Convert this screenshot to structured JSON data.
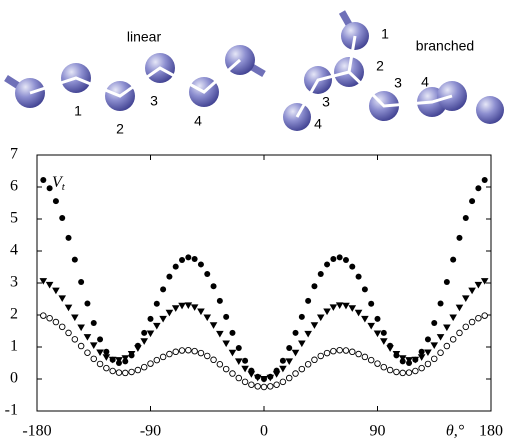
{
  "diagrams": [
    {
      "title": "linear",
      "labels": [
        "1",
        "2",
        "3",
        "4"
      ]
    },
    {
      "title": "branched",
      "labels": [
        "1",
        "2",
        "3",
        "4",
        "3",
        "4"
      ]
    }
  ],
  "chart_data": {
    "type": "scatter",
    "ylabel": {
      "main": "V",
      "sub": "t"
    },
    "xlabel": "θ,°",
    "xlim": [
      -180,
      180
    ],
    "ylim": [
      -1,
      7
    ],
    "xticks": [
      -180,
      -90,
      0,
      90,
      180
    ],
    "yticks": [
      -1,
      0,
      1,
      2,
      3,
      4,
      5,
      6,
      7
    ],
    "x": [
      -175,
      -170,
      -165,
      -160,
      -155,
      -150,
      -145,
      -140,
      -135,
      -130,
      -125,
      -120,
      -115,
      -110,
      -105,
      -100,
      -95,
      -90,
      -85,
      -80,
      -75,
      -70,
      -65,
      -60,
      -55,
      -50,
      -45,
      -40,
      -35,
      -30,
      -25,
      -20,
      -15,
      -10,
      -5,
      0,
      5,
      10,
      15,
      20,
      25,
      30,
      35,
      40,
      45,
      50,
      55,
      60,
      65,
      70,
      75,
      80,
      85,
      90,
      95,
      100,
      105,
      110,
      115,
      120,
      125,
      130,
      135,
      140,
      145,
      150,
      155,
      160,
      165,
      170,
      175
    ],
    "series": [
      {
        "marker": "filled-circle",
        "color": "#000000",
        "values": [
          6.22,
          5.96,
          5.56,
          5.03,
          4.41,
          3.73,
          3.03,
          2.36,
          1.75,
          1.24,
          0.85,
          0.6,
          0.5,
          0.55,
          0.74,
          1.04,
          1.44,
          1.88,
          2.35,
          2.8,
          3.2,
          3.51,
          3.72,
          3.8,
          3.75,
          3.58,
          3.28,
          2.9,
          2.44,
          1.94,
          1.44,
          0.97,
          0.57,
          0.26,
          0.07,
          0,
          0.07,
          0.26,
          0.57,
          0.97,
          1.44,
          1.94,
          2.44,
          2.9,
          3.28,
          3.58,
          3.75,
          3.8,
          3.72,
          3.51,
          3.2,
          2.8,
          2.35,
          1.88,
          1.44,
          1.04,
          0.74,
          0.55,
          0.5,
          0.6,
          0.85,
          1.24,
          1.75,
          2.36,
          3.03,
          3.73,
          4.41,
          5.03,
          5.56,
          5.96,
          6.22
        ]
      },
      {
        "marker": "filled-triangle-down",
        "color": "#000000",
        "values": [
          3.06,
          2.94,
          2.76,
          2.52,
          2.23,
          1.92,
          1.61,
          1.31,
          1.05,
          0.83,
          0.68,
          0.6,
          0.59,
          0.65,
          0.78,
          0.96,
          1.18,
          1.42,
          1.66,
          1.88,
          2.07,
          2.21,
          2.29,
          2.3,
          2.24,
          2.11,
          1.92,
          1.68,
          1.41,
          1.11,
          0.82,
          0.55,
          0.32,
          0.15,
          0.04,
          0,
          0.04,
          0.15,
          0.32,
          0.55,
          0.82,
          1.11,
          1.41,
          1.68,
          1.92,
          2.11,
          2.24,
          2.3,
          2.29,
          2.21,
          2.07,
          1.88,
          1.66,
          1.42,
          1.18,
          0.96,
          0.78,
          0.65,
          0.59,
          0.6,
          0.68,
          0.83,
          1.05,
          1.31,
          1.61,
          1.92,
          2.23,
          2.52,
          2.76,
          2.94,
          3.06
        ]
      },
      {
        "marker": "open-circle",
        "color": "#000000",
        "values": [
          1.98,
          1.9,
          1.78,
          1.63,
          1.44,
          1.24,
          1.03,
          0.82,
          0.63,
          0.47,
          0.34,
          0.25,
          0.2,
          0.19,
          0.22,
          0.28,
          0.37,
          0.48,
          0.59,
          0.69,
          0.78,
          0.85,
          0.89,
          0.9,
          0.87,
          0.81,
          0.72,
          0.6,
          0.46,
          0.31,
          0.17,
          0.03,
          -0.09,
          -0.18,
          -0.23,
          -0.25,
          -0.23,
          -0.18,
          -0.09,
          0.03,
          0.17,
          0.31,
          0.46,
          0.6,
          0.72,
          0.81,
          0.87,
          0.9,
          0.89,
          0.85,
          0.78,
          0.69,
          0.59,
          0.48,
          0.37,
          0.28,
          0.22,
          0.19,
          0.2,
          0.25,
          0.34,
          0.47,
          0.63,
          0.82,
          1.03,
          1.24,
          1.44,
          1.63,
          1.78,
          1.9,
          1.98
        ]
      }
    ]
  }
}
